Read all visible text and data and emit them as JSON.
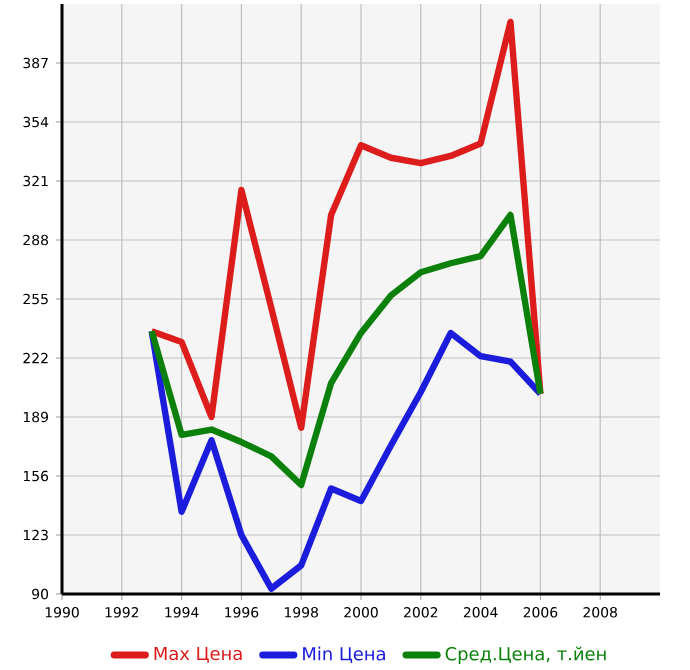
{
  "chart_data": {
    "type": "line",
    "x": [
      1993,
      1994,
      1995,
      1996,
      1997,
      1998,
      1999,
      2000,
      2001,
      2002,
      2003,
      2004,
      2005,
      2006
    ],
    "series": [
      {
        "name": "Max Цена",
        "color": "#dd1c1c",
        "values": [
          237,
          231,
          189,
          316,
          250,
          183,
          302,
          341,
          334,
          331,
          335,
          342,
          410,
          202
        ]
      },
      {
        "name": "Min Цена",
        "color": "#1c1cdd",
        "values": [
          237,
          136,
          176,
          123,
          93,
          106,
          149,
          142,
          173,
          203,
          236,
          223,
          220,
          202
        ]
      },
      {
        "name": "Сред.Цена, т.йен",
        "color": "#0b800b",
        "values": [
          237,
          179,
          182,
          175,
          167,
          151,
          208,
          236,
          257,
          270,
          275,
          279,
          302,
          202
        ]
      }
    ],
    "xlim": [
      1990,
      2010
    ],
    "ylim": [
      90,
      420
    ],
    "xticks": [
      1990,
      1992,
      1994,
      1996,
      1998,
      2000,
      2002,
      2004,
      2006,
      2008
    ],
    "yticks": [
      90,
      123,
      156,
      189,
      222,
      255,
      288,
      321,
      354,
      387
    ],
    "grid": true,
    "legend": "bottom",
    "marker": "none",
    "line_style": "solid"
  }
}
